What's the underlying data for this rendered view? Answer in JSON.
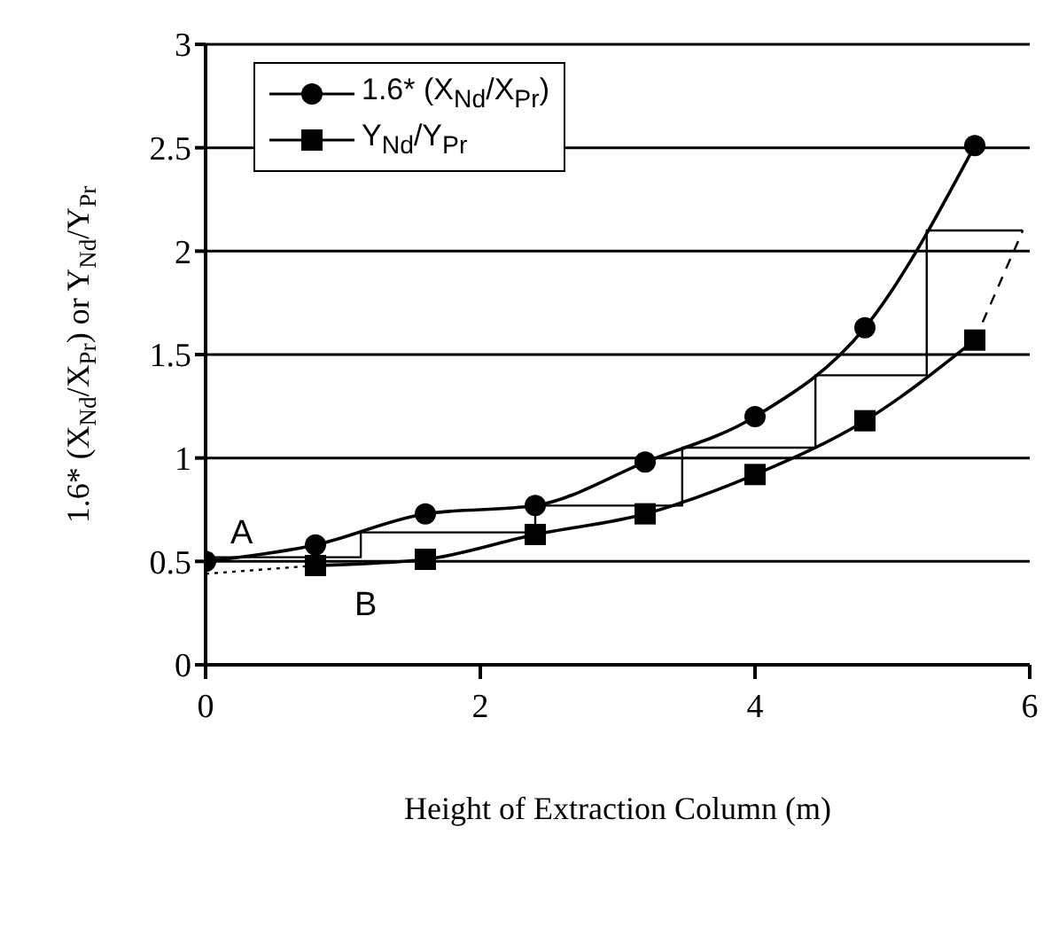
{
  "chart_data": {
    "type": "line",
    "xlabel": "Height of Extraction Column (m)",
    "ylabel": "1.6* (X$_{Nd}$/X$_{Pr}$) or Y$_{Nd}$/Y$_{Pr}$",
    "xlim": [
      0,
      6
    ],
    "xticks": [
      0,
      2,
      4,
      6
    ],
    "ylim": [
      0,
      3
    ],
    "yticks": [
      0,
      0.5,
      1,
      1.5,
      2,
      2.5,
      3
    ],
    "grid": "y",
    "legend": "top left",
    "series": [
      {
        "name": "1.6* (X$_{Nd}$/X$_{Pr}$)",
        "color": "#000000",
        "marker": "circle",
        "x": [
          0,
          0.8,
          1.6,
          2.4,
          3.2,
          4.0,
          4.8,
          5.6
        ],
        "values": [
          0.5,
          0.58,
          0.73,
          0.77,
          0.98,
          1.2,
          1.63,
          2.51
        ]
      },
      {
        "name": "Y$_{Nd}$/Y$_{Pr}$",
        "color": "#000000",
        "marker": "square",
        "x": [
          0.8,
          1.6,
          2.4,
          3.2,
          4.0,
          4.8,
          5.6
        ],
        "values": [
          0.48,
          0.51,
          0.63,
          0.73,
          0.92,
          1.18,
          1.57
        ]
      },
      {
        "color": "#000000",
        "marker": "none",
        "x": [
          0,
          1.13,
          1.13,
          2.4,
          2.4,
          3.47,
          3.47,
          4.44,
          4.44,
          5.25,
          5.25,
          5.95
        ],
        "values": [
          0.52,
          0.52,
          0.64,
          0.64,
          0.77,
          0.77,
          1.05,
          1.05,
          1.4,
          1.4,
          2.1,
          2.1
        ]
      },
      {
        "color": "#000000",
        "marker": "none",
        "line_style": "dashed",
        "x": [
          5.6,
          5.95
        ],
        "values": [
          1.57,
          2.1
        ]
      },
      {
        "color": "#000000",
        "marker": "none",
        "line_style": "dotted",
        "x": [
          0,
          0.8
        ],
        "values": [
          0.44,
          0.48
        ]
      }
    ],
    "annotations": [
      {
        "text": "A",
        "x": 0,
        "y": 0.5
      },
      {
        "text": "B",
        "x": 0.8,
        "y": 0.48
      }
    ]
  }
}
